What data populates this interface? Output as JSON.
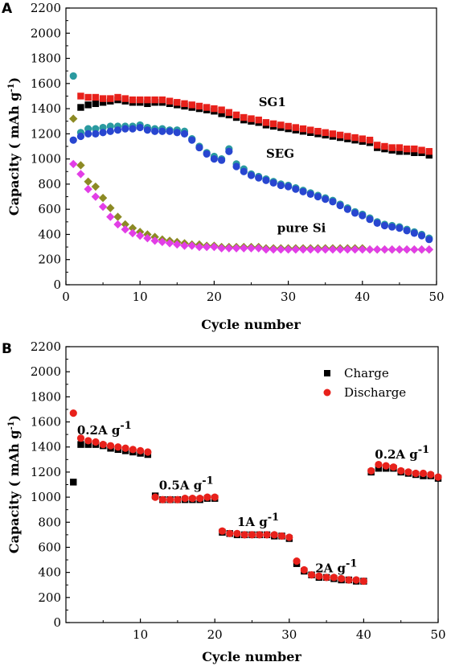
{
  "colors": {
    "black": "#000000",
    "red": "#e8211b",
    "teal": "#2a9aa0",
    "blue": "#2846d0",
    "olive": "#8c8a24",
    "magenta": "#e23ee6"
  },
  "chart_data": [
    {
      "panel": "A",
      "type": "scatter",
      "title": "",
      "xlabel": "Cycle number",
      "ylabel": "Capacity ( mAh g -1 )",
      "ylabel_main": "Capacity ( mAh g",
      "ylabel_sup": "-1",
      "ylabel_end": ")",
      "xlim": [
        0,
        50
      ],
      "ylim": [
        0,
        2200
      ],
      "xticks": [
        0,
        10,
        20,
        30,
        40,
        50
      ],
      "yticks": [
        0,
        200,
        400,
        600,
        800,
        1000,
        1200,
        1400,
        1600,
        1800,
        2000,
        2200
      ],
      "grid": false,
      "legend": "none",
      "annotations": [
        {
          "text": "SG1",
          "x": 26,
          "y": 1420
        },
        {
          "text": "SEG",
          "x": 27,
          "y": 1010
        },
        {
          "text": "pure Si",
          "x": 28.5,
          "y": 420
        }
      ],
      "series": [
        {
          "label": "SG1",
          "part": "charge",
          "marker": "square",
          "color_key": "black",
          "x": [
            2,
            3,
            4,
            5,
            6,
            7,
            8,
            9,
            10,
            11,
            12,
            13,
            14,
            15,
            16,
            17,
            18,
            19,
            20,
            21,
            22,
            23,
            24,
            25,
            26,
            27,
            28,
            29,
            30,
            31,
            32,
            33,
            34,
            35,
            36,
            37,
            38,
            39,
            40,
            41,
            42,
            43,
            44,
            45,
            46,
            47,
            48,
            49
          ],
          "y": [
            1410,
            1430,
            1440,
            1450,
            1460,
            1470,
            1460,
            1450,
            1450,
            1440,
            1450,
            1450,
            1440,
            1430,
            1420,
            1410,
            1400,
            1390,
            1380,
            1360,
            1350,
            1330,
            1310,
            1300,
            1290,
            1270,
            1260,
            1250,
            1240,
            1230,
            1220,
            1210,
            1200,
            1190,
            1180,
            1170,
            1160,
            1150,
            1140,
            1130,
            1090,
            1080,
            1070,
            1060,
            1060,
            1050,
            1050,
            1030
          ]
        },
        {
          "label": "SG1",
          "part": "discharge",
          "marker": "square",
          "color_key": "red",
          "x": [
            2,
            3,
            4,
            5,
            6,
            7,
            8,
            9,
            10,
            11,
            12,
            13,
            14,
            15,
            16,
            17,
            18,
            19,
            20,
            21,
            22,
            23,
            24,
            25,
            26,
            27,
            28,
            29,
            30,
            31,
            32,
            33,
            34,
            35,
            36,
            37,
            38,
            39,
            40,
            41,
            42,
            43,
            44,
            45,
            46,
            47,
            48,
            49
          ],
          "y": [
            1500,
            1490,
            1490,
            1480,
            1480,
            1490,
            1480,
            1470,
            1470,
            1470,
            1470,
            1470,
            1460,
            1450,
            1440,
            1430,
            1420,
            1410,
            1400,
            1390,
            1370,
            1350,
            1330,
            1320,
            1310,
            1290,
            1280,
            1270,
            1260,
            1250,
            1240,
            1230,
            1220,
            1210,
            1200,
            1190,
            1180,
            1170,
            1160,
            1150,
            1110,
            1100,
            1090,
            1090,
            1080,
            1080,
            1070,
            1060
          ]
        },
        {
          "label": "SEG",
          "part": "first",
          "marker": "circle",
          "color_key": "teal",
          "x": [
            1,
            2,
            3,
            4,
            5,
            6,
            7,
            8,
            9,
            10,
            11,
            12,
            13,
            14,
            15,
            16,
            17,
            18,
            19,
            20,
            21,
            22,
            23,
            24,
            25,
            26,
            27,
            28,
            29,
            30,
            31,
            32,
            33,
            34,
            35,
            36,
            37,
            38,
            39,
            40,
            41,
            42,
            43,
            44,
            45,
            46,
            47,
            48,
            49
          ],
          "y": [
            1660,
            1210,
            1240,
            1240,
            1250,
            1260,
            1260,
            1260,
            1260,
            1270,
            1250,
            1240,
            1240,
            1230,
            1230,
            1220,
            1160,
            1100,
            1050,
            1020,
            1000,
            1080,
            960,
            920,
            880,
            860,
            840,
            820,
            800,
            790,
            770,
            750,
            730,
            710,
            690,
            670,
            640,
            610,
            580,
            560,
            530,
            500,
            480,
            470,
            460,
            440,
            420,
            400,
            370
          ]
        },
        {
          "label": "SEG",
          "part": "second",
          "marker": "circle",
          "color_key": "blue",
          "x": [
            1,
            2,
            3,
            4,
            5,
            6,
            7,
            8,
            9,
            10,
            11,
            12,
            13,
            14,
            15,
            16,
            17,
            18,
            19,
            20,
            21,
            22,
            23,
            24,
            25,
            26,
            27,
            28,
            29,
            30,
            31,
            32,
            33,
            34,
            35,
            36,
            37,
            38,
            39,
            40,
            41,
            42,
            43,
            44,
            45,
            46,
            47,
            48,
            49
          ],
          "y": [
            1150,
            1180,
            1200,
            1200,
            1210,
            1220,
            1230,
            1240,
            1240,
            1250,
            1230,
            1220,
            1220,
            1220,
            1210,
            1200,
            1150,
            1090,
            1040,
            1000,
            990,
            1060,
            940,
            900,
            870,
            850,
            830,
            810,
            790,
            780,
            760,
            740,
            720,
            700,
            680,
            660,
            630,
            600,
            570,
            550,
            520,
            490,
            470,
            460,
            450,
            430,
            410,
            390,
            360
          ]
        },
        {
          "label": "pure Si",
          "part": "first",
          "marker": "diamond",
          "color_key": "olive",
          "x": [
            1,
            2,
            3,
            4,
            5,
            6,
            7,
            8,
            9,
            10,
            11,
            12,
            13,
            14,
            15,
            16,
            17,
            18,
            19,
            20,
            21,
            22,
            23,
            24,
            25,
            26,
            27,
            28,
            29,
            30,
            31,
            32,
            33,
            34,
            35,
            36,
            37,
            38,
            39,
            40,
            41,
            42,
            43,
            44,
            45,
            46,
            47,
            48,
            49
          ],
          "y": [
            1320,
            950,
            820,
            780,
            690,
            610,
            540,
            480,
            450,
            420,
            400,
            380,
            360,
            350,
            340,
            330,
            320,
            320,
            310,
            310,
            300,
            300,
            300,
            300,
            300,
            300,
            290,
            290,
            290,
            290,
            290,
            290,
            290,
            290,
            290,
            290,
            290,
            290,
            290,
            290,
            280,
            280,
            280,
            280,
            280,
            280,
            280,
            280,
            280
          ]
        },
        {
          "label": "pure Si",
          "part": "second",
          "marker": "diamond",
          "color_key": "magenta",
          "x": [
            1,
            2,
            3,
            4,
            5,
            6,
            7,
            8,
            9,
            10,
            11,
            12,
            13,
            14,
            15,
            16,
            17,
            18,
            19,
            20,
            21,
            22,
            23,
            24,
            25,
            26,
            27,
            28,
            29,
            30,
            31,
            32,
            33,
            34,
            35,
            36,
            37,
            38,
            39,
            40,
            41,
            42,
            43,
            44,
            45,
            46,
            47,
            48,
            49
          ],
          "y": [
            960,
            880,
            760,
            700,
            620,
            540,
            480,
            440,
            410,
            390,
            370,
            350,
            340,
            330,
            320,
            310,
            310,
            300,
            300,
            300,
            290,
            290,
            290,
            290,
            290,
            290,
            280,
            280,
            280,
            280,
            280,
            280,
            280,
            280,
            280,
            280,
            280,
            280,
            280,
            280,
            280,
            280,
            280,
            280,
            280,
            280,
            280,
            280,
            280
          ]
        }
      ]
    },
    {
      "panel": "B",
      "type": "scatter",
      "title": "",
      "xlabel": "Cycle number",
      "ylabel": "Capacity ( mAh g -1 )",
      "ylabel_main": "Capacity ( mAh g",
      "ylabel_sup": "-1",
      "ylabel_end": ")",
      "xlim": [
        0,
        50
      ],
      "ylim": [
        0,
        2200
      ],
      "xticks": [
        10,
        20,
        30,
        40,
        50
      ],
      "yticks": [
        0,
        200,
        400,
        600,
        800,
        1000,
        1200,
        1400,
        1600,
        1800,
        2000,
        2200
      ],
      "grid": false,
      "legend": "top-right",
      "annotations": [
        {
          "text": "0.2A g",
          "sup": "-1",
          "x": 1.5,
          "y": 1500
        },
        {
          "text": "0.5A g",
          "sup": "-1",
          "x": 12.5,
          "y": 1060
        },
        {
          "text": "1A g",
          "sup": "-1",
          "x": 23,
          "y": 770
        },
        {
          "text": "2A g",
          "sup": "-1",
          "x": 33.5,
          "y": 400
        },
        {
          "text": "0.2A g",
          "sup": "-1",
          "x": 41.5,
          "y": 1310
        }
      ],
      "series": [
        {
          "name": "Charge",
          "marker": "square",
          "color_key": "black",
          "x": [
            1,
            2,
            3,
            4,
            5,
            6,
            7,
            8,
            9,
            10,
            11,
            12,
            13,
            14,
            15,
            16,
            17,
            18,
            19,
            20,
            21,
            22,
            23,
            24,
            25,
            26,
            27,
            28,
            29,
            30,
            31,
            32,
            33,
            34,
            35,
            36,
            37,
            38,
            39,
            40,
            41,
            42,
            43,
            44,
            45,
            46,
            47,
            48,
            49,
            50
          ],
          "y": [
            1120,
            1420,
            1420,
            1420,
            1410,
            1390,
            1380,
            1370,
            1360,
            1350,
            1340,
            1010,
            980,
            980,
            980,
            980,
            980,
            980,
            990,
            990,
            720,
            710,
            700,
            700,
            700,
            700,
            700,
            690,
            690,
            670,
            470,
            410,
            380,
            360,
            360,
            350,
            340,
            340,
            330,
            330,
            1200,
            1230,
            1230,
            1230,
            1200,
            1190,
            1180,
            1170,
            1170,
            1150
          ]
        },
        {
          "name": "Discharge",
          "marker": "circle",
          "color_key": "red",
          "x": [
            1,
            2,
            3,
            4,
            5,
            6,
            7,
            8,
            9,
            10,
            11,
            12,
            13,
            14,
            15,
            16,
            17,
            18,
            19,
            20,
            21,
            22,
            23,
            24,
            25,
            26,
            27,
            28,
            29,
            30,
            31,
            32,
            33,
            34,
            35,
            36,
            37,
            38,
            39,
            40,
            41,
            42,
            43,
            44,
            45,
            46,
            47,
            48,
            49,
            50
          ],
          "y": [
            1670,
            1470,
            1450,
            1440,
            1420,
            1410,
            1400,
            1390,
            1380,
            1370,
            1360,
            1000,
            980,
            980,
            980,
            990,
            990,
            990,
            1000,
            1000,
            730,
            710,
            710,
            700,
            700,
            700,
            700,
            700,
            690,
            680,
            490,
            420,
            380,
            370,
            360,
            360,
            350,
            340,
            340,
            330,
            1210,
            1260,
            1250,
            1240,
            1210,
            1200,
            1190,
            1190,
            1180,
            1160
          ]
        }
      ]
    }
  ]
}
